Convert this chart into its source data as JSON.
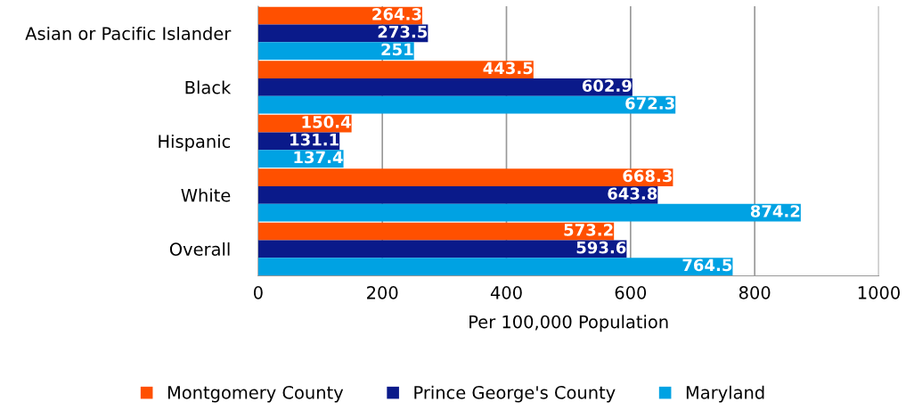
{
  "chart_data": {
    "type": "bar",
    "orientation": "horizontal",
    "xlabel": "Per 100,000 Population",
    "categories": [
      "Asian or Pacific Islander",
      "Black",
      "Hispanic",
      "White",
      "Overall"
    ],
    "series": [
      {
        "name": "Montgomery County",
        "color": "#ff5000",
        "values": [
          264.3,
          443.5,
          150.4,
          668.3,
          573.2
        ]
      },
      {
        "name": "Prince George's County",
        "color": "#0a1a8a",
        "values": [
          273.5,
          602.9,
          131.1,
          643.8,
          593.6
        ]
      },
      {
        "name": "Maryland",
        "color": "#00a2e3",
        "values": [
          251,
          672.3,
          137.4,
          874.2,
          764.5
        ]
      }
    ],
    "xlim": [
      0,
      1000
    ],
    "xticks": [
      0,
      200,
      400,
      600,
      800,
      1000
    ],
    "grid": "x",
    "legend": "bottom",
    "data_labels": true
  }
}
